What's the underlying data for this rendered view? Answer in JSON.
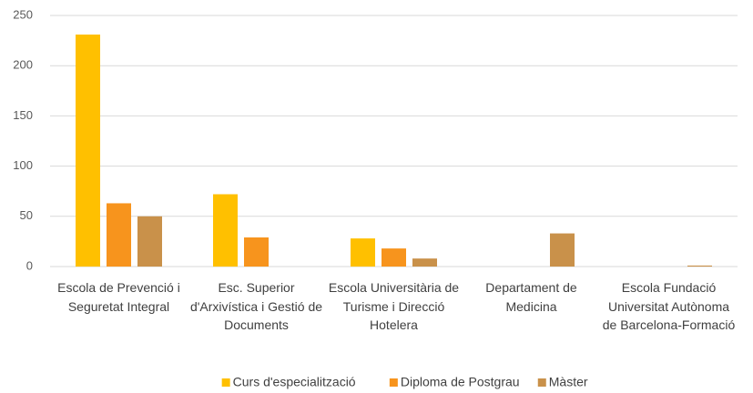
{
  "chart_data": {
    "type": "bar",
    "categories": [
      "Escola de Prevenció i Seguretat Integral",
      "Esc. Superior d'Arxivística i Gestió de Documents",
      "Escola Universitària de Turisme i Direcció Hotelera",
      "Departament de Medicina",
      "Escola Fundació Universitat Autònoma de Barcelona-Formació"
    ],
    "series": [
      {
        "name": "Curs d'especialització",
        "color": "#ffc000",
        "values": [
          231,
          72,
          28,
          0,
          0
        ]
      },
      {
        "name": "Diploma de Postgrau",
        "color": "#f7941d",
        "values": [
          63,
          29,
          18,
          0,
          0
        ]
      },
      {
        "name": "Màster",
        "color": "#c9914a",
        "values": [
          50,
          0,
          8,
          33,
          1
        ]
      }
    ],
    "ylim": [
      0,
      250
    ],
    "yticks": [
      0,
      50,
      100,
      150,
      200,
      250
    ],
    "grid": true,
    "legend": "bottom"
  }
}
